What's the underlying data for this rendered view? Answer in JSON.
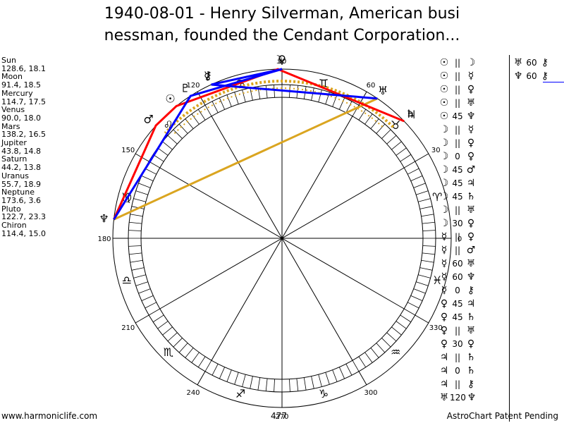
{
  "title": {
    "line1": "1940-08-01 - Henry Silverman, American busi",
    "line2": "nessman, founded the Cendant Corporation..."
  },
  "planets": [
    {
      "name": "Sun",
      "value": "128.6, 18.1"
    },
    {
      "name": "Moon",
      "value": "91.4, 18.5"
    },
    {
      "name": "Mercury",
      "value": "114.7, 17.5"
    },
    {
      "name": "Venus",
      "value": "90.0, 18.0"
    },
    {
      "name": "Mars",
      "value": "138.2, 16.5"
    },
    {
      "name": "Jupiter",
      "value": "43.8, 14.8"
    },
    {
      "name": "Saturn",
      "value": "44.2, 13.8"
    },
    {
      "name": "Uranus",
      "value": "55.7, 18.9"
    },
    {
      "name": "Neptune",
      "value": "173.6, 3.6"
    },
    {
      "name": "Pluto",
      "value": "122.7, 23.3"
    },
    {
      "name": "Chiron",
      "value": "114.4, 15.0"
    }
  ],
  "aspects": [
    {
      "p1": "☉",
      "sym": "||",
      "p2": "☽"
    },
    {
      "p1": "☉",
      "sym": "||",
      "p2": "☿"
    },
    {
      "p1": "☉",
      "sym": "||",
      "p2": "♀"
    },
    {
      "p1": "☉",
      "sym": "||",
      "p2": "♅"
    },
    {
      "p1": "☉",
      "sym": "45",
      "p2": "♆"
    },
    {
      "p1": "☽",
      "sym": "||",
      "p2": "☿"
    },
    {
      "p1": "☽",
      "sym": "||",
      "p2": "♀"
    },
    {
      "p1": "☽",
      "sym": "0",
      "p2": "♀"
    },
    {
      "p1": "☽",
      "sym": "45",
      "p2": "♂"
    },
    {
      "p1": "☽",
      "sym": "45",
      "p2": "♃"
    },
    {
      "p1": "☽",
      "sym": "45",
      "p2": "♄"
    },
    {
      "p1": "☽",
      "sym": "||",
      "p2": "♅"
    },
    {
      "p1": "☽",
      "sym": "30",
      "p2": "♀"
    },
    {
      "p1": "☿",
      "sym": "||",
      "p2": "♀"
    },
    {
      "p1": "☿",
      "sym": "||",
      "p2": "♂"
    },
    {
      "p1": "☿",
      "sym": "60",
      "p2": "♅"
    },
    {
      "p1": "☿",
      "sym": "60",
      "p2": "♆"
    },
    {
      "p1": "☿",
      "sym": "0",
      "p2": "⚷"
    },
    {
      "p1": "♀",
      "sym": "45",
      "p2": "♃"
    },
    {
      "p1": "♀",
      "sym": "45",
      "p2": "♄"
    },
    {
      "p1": "♀",
      "sym": "||",
      "p2": "♅"
    },
    {
      "p1": "♀",
      "sym": "30",
      "p2": "♀"
    },
    {
      "p1": "♃",
      "sym": "||",
      "p2": "♄"
    },
    {
      "p1": "♃",
      "sym": "0",
      "p2": "♄"
    },
    {
      "p1": "♃",
      "sym": "||",
      "p2": "⚷"
    },
    {
      "p1": "♅",
      "sym": "120",
      "p2": "♆"
    }
  ],
  "extra_aspects": [
    {
      "p1": "♅",
      "sym": "60",
      "p2": "⚷"
    },
    {
      "p1": "♆",
      "sym": "60",
      "p2": "⚷"
    }
  ],
  "chart_data": {
    "type": "astrological-wheel",
    "tick_labels": [
      "0",
      "30",
      "60",
      "90",
      "120",
      "150",
      "180",
      "210",
      "240",
      "270",
      "300",
      "330"
    ],
    "signs": [
      {
        "glyph": "♈",
        "deg": 15
      },
      {
        "glyph": "♉",
        "deg": 45
      },
      {
        "glyph": "♊",
        "deg": 75
      },
      {
        "glyph": "♋",
        "deg": 105
      },
      {
        "glyph": "♌",
        "deg": 135
      },
      {
        "glyph": "♍",
        "deg": 165
      },
      {
        "glyph": "♎",
        "deg": 195
      },
      {
        "glyph": "♏",
        "deg": 225
      },
      {
        "glyph": "♐",
        "deg": 255
      },
      {
        "glyph": "♑",
        "deg": 285
      },
      {
        "glyph": "♒",
        "deg": 315
      },
      {
        "glyph": "♓",
        "deg": 345
      }
    ],
    "planet_positions": [
      {
        "glyph": "☉",
        "deg": 128.6
      },
      {
        "glyph": "☽",
        "deg": 91.4
      },
      {
        "glyph": "☿",
        "deg": 114.7
      },
      {
        "glyph": "♀",
        "deg": 90.0
      },
      {
        "glyph": "♂",
        "deg": 138.2
      },
      {
        "glyph": "♃",
        "deg": 43.8
      },
      {
        "glyph": "♄",
        "deg": 44.2
      },
      {
        "glyph": "♅",
        "deg": 55.7
      },
      {
        "glyph": "♆",
        "deg": 173.6
      },
      {
        "glyph": "♇",
        "deg": 122.7
      },
      {
        "glyph": "⚷",
        "deg": 114.4
      }
    ],
    "red_path_deg": [
      173.6,
      138.2,
      128.6,
      91.4,
      43.8
    ],
    "blue_path_deg": [
      173.6,
      122.7,
      90.0,
      114.7,
      55.7
    ],
    "orange_line_deg": [
      173.6,
      55.7
    ],
    "colors": {
      "red": "#ff0000",
      "blue": "#0000ff",
      "orange": "#daa520"
    }
  },
  "footer": {
    "left": "www.harmoniclife.com",
    "center": "477",
    "right": "AstroChart Patent Pending"
  }
}
